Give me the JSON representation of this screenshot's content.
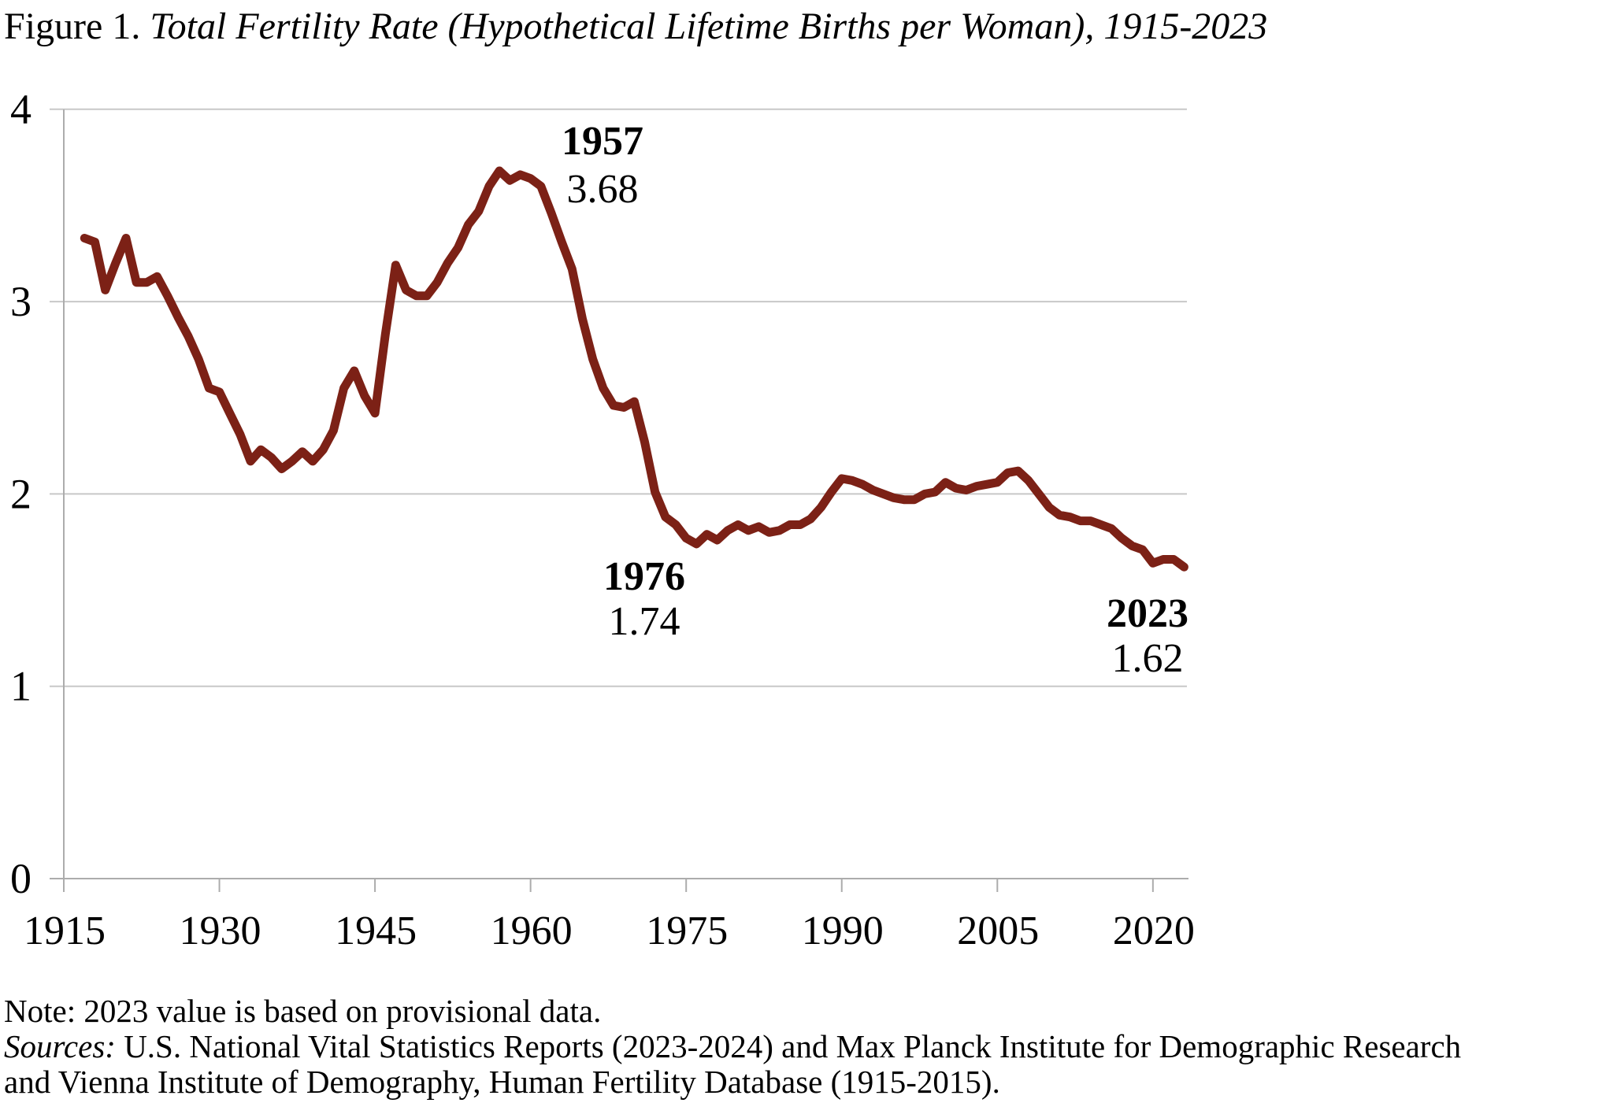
{
  "figure": {
    "label": "Figure 1.",
    "title": "Total Fertility Rate (Hypothetical Lifetime Births per Woman), 1915-2023"
  },
  "notes": {
    "note_line": "Note: 2023 value is based on provisional data.",
    "sources_label": "Sources:",
    "sources_text1": " U.S. National Vital Statistics Reports (2023-2024) and Max Planck Institute for Demographic Research",
    "sources_text2": "and Vienna Institute of Demography, Human Fertility Database (1915-2015)."
  },
  "chart_data": {
    "type": "line",
    "title": "Total Fertility Rate (Hypothetical Lifetime Births per Woman), 1915-2023",
    "xlabel": "",
    "ylabel": "",
    "xlim": [
      1915,
      2024
    ],
    "ylim": [
      0,
      4
    ],
    "x_ticks": [
      1915,
      1930,
      1945,
      1960,
      1975,
      1990,
      2005,
      2020
    ],
    "y_ticks": [
      0,
      1,
      2,
      3,
      4
    ],
    "grid": true,
    "legend": "none",
    "line_color": "#7C2116",
    "grid_color": "#C8C8C8",
    "axis_color": "#ACACAC",
    "series": [
      {
        "name": "Total fertility rate",
        "x_start": 1917,
        "x_step": 1,
        "x_end": 2023,
        "values": [
          3.33,
          3.31,
          3.06,
          3.2,
          3.33,
          3.1,
          3.1,
          3.13,
          3.03,
          2.92,
          2.82,
          2.7,
          2.55,
          2.53,
          2.42,
          2.31,
          2.17,
          2.23,
          2.19,
          2.13,
          2.17,
          2.22,
          2.17,
          2.23,
          2.33,
          2.55,
          2.64,
          2.51,
          2.42,
          2.83,
          3.19,
          3.06,
          3.03,
          3.03,
          3.1,
          3.2,
          3.28,
          3.4,
          3.47,
          3.6,
          3.68,
          3.63,
          3.66,
          3.64,
          3.6,
          3.46,
          3.31,
          3.17,
          2.91,
          2.7,
          2.55,
          2.46,
          2.45,
          2.48,
          2.27,
          2.01,
          1.88,
          1.84,
          1.77,
          1.74,
          1.79,
          1.76,
          1.81,
          1.84,
          1.81,
          1.83,
          1.8,
          1.81,
          1.84,
          1.84,
          1.87,
          1.93,
          2.01,
          2.08,
          2.07,
          2.05,
          2.02,
          2.0,
          1.98,
          1.97,
          1.97,
          2.0,
          2.01,
          2.06,
          2.03,
          2.02,
          2.04,
          2.05,
          2.06,
          2.11,
          2.12,
          2.07,
          2.0,
          1.93,
          1.89,
          1.88,
          1.86,
          1.86,
          1.84,
          1.82,
          1.77,
          1.73,
          1.71,
          1.64,
          1.66,
          1.66,
          1.62
        ]
      }
    ],
    "annotations": [
      {
        "year": 1957,
        "year_label": "1957",
        "value_label": "3.68"
      },
      {
        "year": 1976,
        "year_label": "1976",
        "value_label": "1.74"
      },
      {
        "year": 2023,
        "year_label": "2023",
        "value_label": "1.62"
      }
    ]
  }
}
